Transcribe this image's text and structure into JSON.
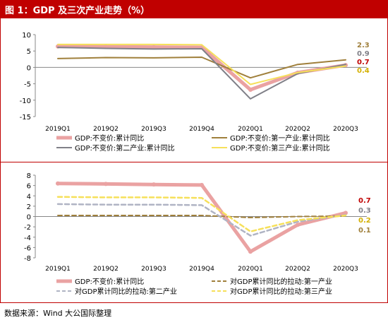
{
  "title": "图 1：GDP 及三次产业走势（%）",
  "source": "数据来源：Wind 大公国际整理",
  "chart_data": [
    {
      "type": "line",
      "categories": [
        "2019Q1",
        "2019Q2",
        "2019Q3",
        "2019Q4",
        "2020Q1",
        "2020Q2",
        "2020Q3"
      ],
      "ylim": [
        -15,
        10
      ],
      "yticks": [
        10,
        5,
        0,
        -5,
        -10,
        -15
      ],
      "series": [
        {
          "name": "GDP:不变价:累计同比",
          "color": "#eaa2a2",
          "style": "solid",
          "width": 5,
          "values": [
            6.4,
            6.3,
            6.2,
            6.1,
            -6.8,
            -1.6,
            0.7
          ]
        },
        {
          "name": "GDP:不变价:第一产业:累计同比",
          "color": "#a0803c",
          "style": "solid",
          "width": 2,
          "values": [
            2.7,
            3.0,
            2.9,
            3.1,
            -3.2,
            0.9,
            2.3
          ]
        },
        {
          "name": "GDP:不变价:第二产业:累计同比",
          "color": "#808088",
          "style": "solid",
          "width": 2,
          "values": [
            6.1,
            5.8,
            5.6,
            5.7,
            -9.6,
            -1.9,
            0.9
          ]
        },
        {
          "name": "GDP:不变价:第三产业:累计同比",
          "color": "#f6e05a",
          "style": "solid",
          "width": 2,
          "values": [
            7.0,
            7.0,
            7.0,
            6.9,
            -5.2,
            -1.6,
            0.4
          ]
        }
      ],
      "end_labels": [
        {
          "text": "2.3",
          "color": "#a0803c",
          "value": 2.3
        },
        {
          "text": "0.9",
          "color": "#808088",
          "value": 0.9
        },
        {
          "text": "0.7",
          "color": "#c00000",
          "value": 0.7
        },
        {
          "text": "0.4",
          "color": "#d4b000",
          "value": 0.4
        }
      ]
    },
    {
      "type": "line",
      "categories": [
        "2019Q1",
        "2019Q2",
        "2019Q3",
        "2019Q4",
        "2020Q1",
        "2020Q2",
        "2020Q3"
      ],
      "ylim": [
        -8,
        8
      ],
      "yticks": [
        8,
        6,
        4,
        2,
        0,
        -2,
        -4,
        -6,
        -8
      ],
      "series": [
        {
          "name": "GDP:不变价:累计同比",
          "color": "#eaa2a2",
          "style": "solid",
          "width": 5,
          "values": [
            6.4,
            6.3,
            6.2,
            6.1,
            -6.8,
            -1.6,
            0.7
          ]
        },
        {
          "name": "对GDP累计同比的拉动:第一产业",
          "color": "#a0803c",
          "style": "dashed",
          "width": 2,
          "values": [
            0.2,
            0.2,
            0.2,
            0.2,
            -0.2,
            0.0,
            0.1
          ]
        },
        {
          "name": "对GDP累计同比的拉动:第二产业",
          "color": "#b0b4c4",
          "style": "dashed",
          "width": 2.5,
          "values": [
            2.4,
            2.3,
            2.3,
            2.2,
            -3.7,
            -1.0,
            0.3
          ]
        },
        {
          "name": "对GDP累计同比的拉动:第三产业",
          "color": "#f6e05a",
          "style": "dashed",
          "width": 2.5,
          "values": [
            3.8,
            3.7,
            3.7,
            3.6,
            -2.9,
            -0.7,
            0.2
          ]
        }
      ],
      "end_labels": [
        {
          "text": "0.7",
          "color": "#c00000",
          "value": 0.7
        },
        {
          "text": "0.3",
          "color": "#808088",
          "value": 0.3
        },
        {
          "text": "0.2",
          "color": "#d4b000",
          "value": 0.2
        },
        {
          "text": "0.1",
          "color": "#a0803c",
          "value": 0.1
        }
      ]
    }
  ]
}
